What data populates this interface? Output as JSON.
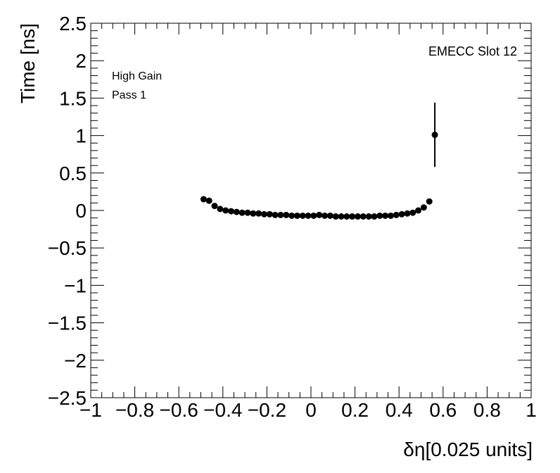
{
  "chart_data": {
    "type": "scatter",
    "title": "",
    "xlabel": "δη[0.025 units]",
    "ylabel": "Time [ns]",
    "xlim": [
      -1,
      1
    ],
    "ylim": [
      -2.5,
      2.5
    ],
    "x_ticks": [
      -1,
      -0.8,
      -0.6,
      -0.4,
      -0.2,
      0,
      0.2,
      0.4,
      0.6,
      0.8,
      1
    ],
    "x_tick_labels": [
      "−1",
      "−0.8",
      "−0.6",
      "−0.4",
      "−0.2",
      "0",
      "0.2",
      "0.4",
      "0.6",
      "0.8",
      "1"
    ],
    "y_ticks": [
      -2.5,
      -2,
      -1.5,
      -1,
      -0.5,
      0,
      0.5,
      1,
      1.5,
      2,
      2.5
    ],
    "y_tick_labels": [
      "−2.5",
      "−2",
      "−1.5",
      "−1",
      "−0.5",
      "0",
      "0.5",
      "1",
      "1.5",
      "2",
      "2.5"
    ],
    "annotations": [
      "High Gain",
      "Pass 1",
      "EMECC Slot 12"
    ],
    "grid": false,
    "marker_color": "#000000",
    "points": [
      {
        "x": -0.4875,
        "y": 0.15
      },
      {
        "x": -0.4625,
        "y": 0.13
      },
      {
        "x": -0.4375,
        "y": 0.06
      },
      {
        "x": -0.4125,
        "y": 0.02
      },
      {
        "x": -0.3875,
        "y": 0.0
      },
      {
        "x": -0.3625,
        "y": -0.01
      },
      {
        "x": -0.3375,
        "y": -0.02
      },
      {
        "x": -0.3125,
        "y": -0.03
      },
      {
        "x": -0.2875,
        "y": -0.03
      },
      {
        "x": -0.2625,
        "y": -0.04
      },
      {
        "x": -0.2375,
        "y": -0.04
      },
      {
        "x": -0.2125,
        "y": -0.05
      },
      {
        "x": -0.1875,
        "y": -0.05
      },
      {
        "x": -0.1625,
        "y": -0.06
      },
      {
        "x": -0.1375,
        "y": -0.06
      },
      {
        "x": -0.1125,
        "y": -0.06
      },
      {
        "x": -0.0875,
        "y": -0.07
      },
      {
        "x": -0.0625,
        "y": -0.07
      },
      {
        "x": -0.0375,
        "y": -0.07
      },
      {
        "x": -0.0125,
        "y": -0.07
      },
      {
        "x": 0.0125,
        "y": -0.07
      },
      {
        "x": 0.0375,
        "y": -0.06
      },
      {
        "x": 0.0625,
        "y": -0.07
      },
      {
        "x": 0.0875,
        "y": -0.07
      },
      {
        "x": 0.1125,
        "y": -0.08
      },
      {
        "x": 0.1375,
        "y": -0.08
      },
      {
        "x": 0.1625,
        "y": -0.08
      },
      {
        "x": 0.1875,
        "y": -0.08
      },
      {
        "x": 0.2125,
        "y": -0.08
      },
      {
        "x": 0.2375,
        "y": -0.08
      },
      {
        "x": 0.2625,
        "y": -0.08
      },
      {
        "x": 0.2875,
        "y": -0.08
      },
      {
        "x": 0.3125,
        "y": -0.07
      },
      {
        "x": 0.3375,
        "y": -0.07
      },
      {
        "x": 0.3625,
        "y": -0.07
      },
      {
        "x": 0.3875,
        "y": -0.06
      },
      {
        "x": 0.4125,
        "y": -0.05
      },
      {
        "x": 0.4375,
        "y": -0.04
      },
      {
        "x": 0.4625,
        "y": -0.03
      },
      {
        "x": 0.4875,
        "y": 0.0
      },
      {
        "x": 0.5125,
        "y": 0.04
      },
      {
        "x": 0.5375,
        "y": 0.12
      },
      {
        "x": 0.5625,
        "y": 1.01,
        "yerr": 0.43
      }
    ]
  }
}
